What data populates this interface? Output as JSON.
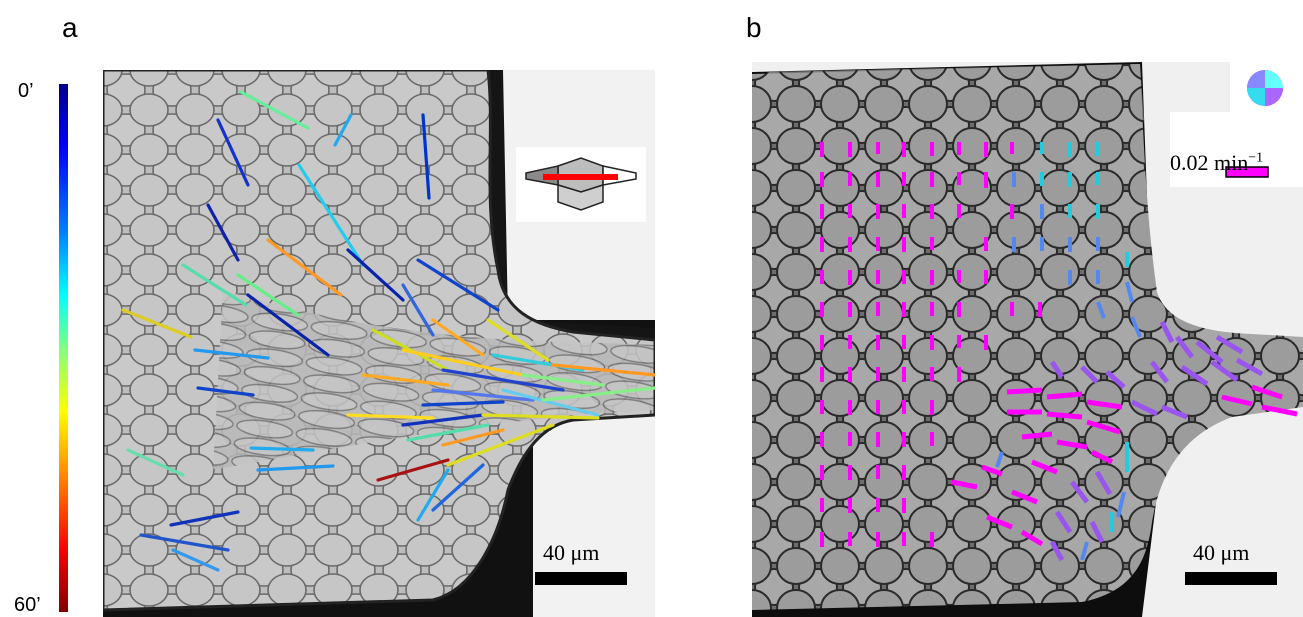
{
  "panel_a": {
    "letter": "a",
    "colorbar": {
      "top_label": "0’",
      "bottom_label": "60’",
      "colormap": [
        "#00008b",
        "#0000ff",
        "#0080ff",
        "#00ffff",
        "#80ff80",
        "#ffff00",
        "#ff8000",
        "#ff0000",
        "#800000"
      ]
    },
    "scale_bar": "40 μm",
    "inset_icon": "elongated-cell-axis-icon",
    "inset_line_color": "#ff0000"
  },
  "panel_b": {
    "letter": "b",
    "rate_value": "0.02",
    "rate_unit": "min",
    "rate_exponent": "−1",
    "scale_bar": "40 μm",
    "legend_icon": "color-wheel-icon",
    "legend_bar_color": "#ff00ff"
  }
}
